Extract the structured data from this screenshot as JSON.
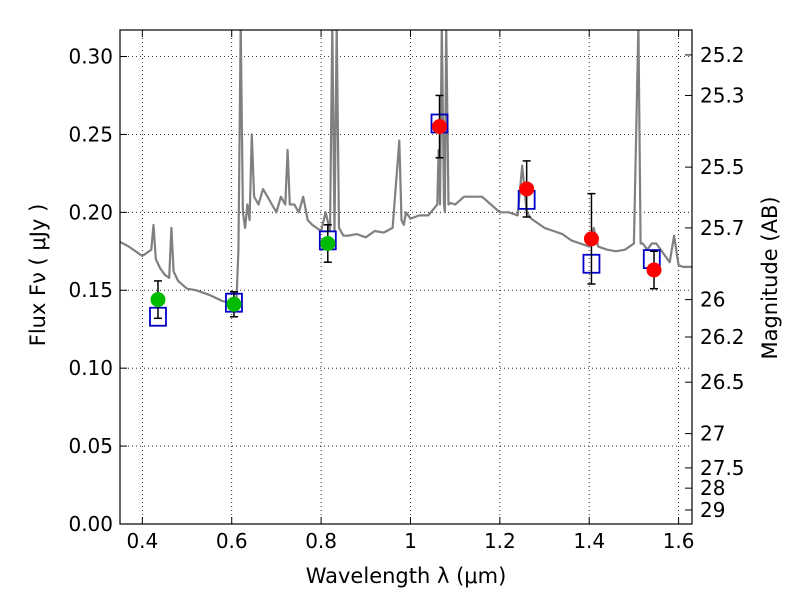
{
  "chart_data": {
    "type": "scatter",
    "title": "",
    "xlabel": "Wavelength  λ (μm)",
    "ylabel": "Flux  Fν  ( μJy )",
    "ylabel_right": "Magnitude (AB)",
    "xlim": [
      0.35,
      1.63
    ],
    "ylim": [
      0.0,
      0.317
    ],
    "grid": true,
    "x_ticks": [
      0.4,
      0.6,
      0.8,
      1.0,
      1.2,
      1.4,
      1.6
    ],
    "x_tick_labels": [
      "0.4",
      "0.6",
      "0.8",
      "1",
      "1.2",
      "1.4",
      "1.6"
    ],
    "y_ticks": [
      0.0,
      0.05,
      0.1,
      0.15,
      0.2,
      0.25,
      0.3
    ],
    "y_tick_labels": [
      "0.00",
      "0.05",
      "0.10",
      "0.15",
      "0.20",
      "0.25",
      "0.30"
    ],
    "right_ticks": [
      {
        "label": "25.2",
        "flux": 0.301
      },
      {
        "label": "25.3",
        "flux": 0.275
      },
      {
        "label": "25.5",
        "flux": 0.229
      },
      {
        "label": "25.7",
        "flux": 0.19
      },
      {
        "label": "26",
        "flux": 0.144
      },
      {
        "label": "26.2",
        "flux": 0.12
      },
      {
        "label": "26.5",
        "flux": 0.091
      },
      {
        "label": "27",
        "flux": 0.058
      },
      {
        "label": "27.5",
        "flux": 0.036
      },
      {
        "label": "28",
        "flux": 0.023
      },
      {
        "label": "29",
        "flux": 0.009
      }
    ],
    "series": [
      {
        "kind": "line",
        "color": "#808080",
        "x": [
          0.35,
          0.37,
          0.4,
          0.42,
          0.425,
          0.43,
          0.44,
          0.45,
          0.46,
          0.465,
          0.47,
          0.48,
          0.5,
          0.52,
          0.55,
          0.58,
          0.6,
          0.61,
          0.615,
          0.62,
          0.625,
          0.63,
          0.635,
          0.64,
          0.645,
          0.65,
          0.66,
          0.67,
          0.68,
          0.69,
          0.7,
          0.71,
          0.72,
          0.725,
          0.73,
          0.74,
          0.75,
          0.76,
          0.77,
          0.78,
          0.79,
          0.8,
          0.81,
          0.82,
          0.825,
          0.83,
          0.835,
          0.84,
          0.85,
          0.86,
          0.88,
          0.9,
          0.92,
          0.94,
          0.96,
          0.975,
          0.98,
          0.985,
          0.99,
          1.0,
          1.02,
          1.04,
          1.06,
          1.063,
          1.066,
          1.07,
          1.075,
          1.077,
          1.08,
          1.085,
          1.09,
          1.1,
          1.12,
          1.14,
          1.16,
          1.18,
          1.2,
          1.22,
          1.24,
          1.25,
          1.26,
          1.27,
          1.28,
          1.3,
          1.32,
          1.34,
          1.36,
          1.38,
          1.4,
          1.41,
          1.42,
          1.44,
          1.46,
          1.48,
          1.5,
          1.51,
          1.515,
          1.52,
          1.53,
          1.54,
          1.55,
          1.56,
          1.58,
          1.59,
          1.6,
          1.61,
          1.63
        ],
        "y": [
          0.181,
          0.178,
          0.172,
          0.176,
          0.192,
          0.17,
          0.164,
          0.16,
          0.158,
          0.19,
          0.162,
          0.156,
          0.151,
          0.15,
          0.147,
          0.143,
          0.142,
          0.14,
          0.175,
          0.32,
          0.2,
          0.19,
          0.205,
          0.195,
          0.25,
          0.21,
          0.205,
          0.215,
          0.21,
          0.205,
          0.2,
          0.21,
          0.205,
          0.24,
          0.205,
          0.205,
          0.2,
          0.21,
          0.195,
          0.192,
          0.19,
          0.188,
          0.2,
          0.188,
          0.32,
          0.188,
          0.32,
          0.19,
          0.185,
          0.185,
          0.186,
          0.184,
          0.188,
          0.187,
          0.19,
          0.246,
          0.195,
          0.192,
          0.2,
          0.196,
          0.198,
          0.198,
          0.205,
          0.24,
          0.205,
          0.32,
          0.205,
          0.2,
          0.32,
          0.205,
          0.206,
          0.205,
          0.21,
          0.21,
          0.21,
          0.205,
          0.2,
          0.2,
          0.198,
          0.23,
          0.2,
          0.196,
          0.194,
          0.19,
          0.188,
          0.186,
          0.182,
          0.18,
          0.178,
          0.19,
          0.178,
          0.176,
          0.175,
          0.176,
          0.18,
          0.32,
          0.18,
          0.18,
          0.176,
          0.18,
          0.18,
          0.176,
          0.168,
          0.185,
          0.166,
          0.165,
          0.165
        ]
      },
      {
        "kind": "model-boxes",
        "color": "#0000c8",
        "x": [
          0.435,
          0.605,
          0.815,
          1.065,
          1.26,
          1.405,
          1.54
        ],
        "y": [
          0.133,
          0.142,
          0.182,
          0.257,
          0.208,
          0.167,
          0.17
        ]
      },
      {
        "kind": "points",
        "color": "#00bb00",
        "x": [
          0.435,
          0.605,
          0.815
        ],
        "y": [
          0.144,
          0.141,
          0.18
        ],
        "err": [
          0.012,
          0.008,
          0.012
        ]
      },
      {
        "kind": "points",
        "color": "#ff0000",
        "x": [
          1.065,
          1.26,
          1.405,
          1.545
        ],
        "y": [
          0.255,
          0.215,
          0.183,
          0.163
        ],
        "err": [
          0.02,
          0.018,
          0.029,
          0.012
        ]
      }
    ]
  }
}
